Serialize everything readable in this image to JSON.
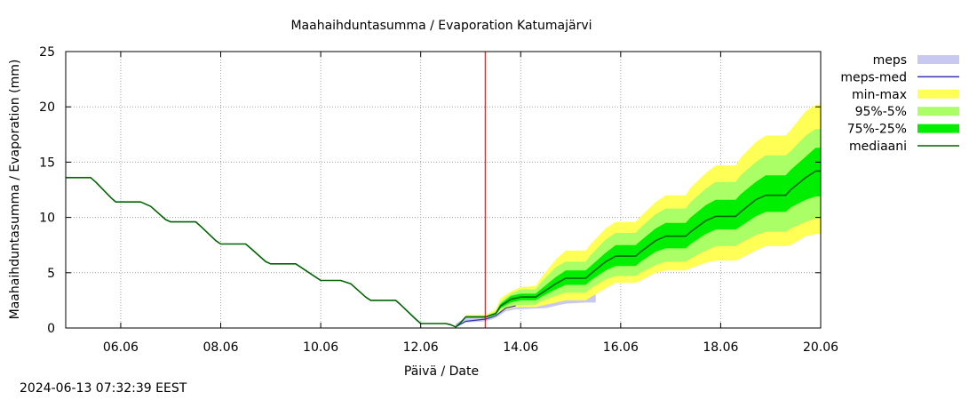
{
  "timestamp": "2024-06-13 07:32:39 EEST",
  "chart_data": {
    "type": "area",
    "title": "Maahaihduntasumma / Evaporation   Katumajärvi",
    "xlabel": "Päivä / Date",
    "ylabel": "Maahaihduntasumma / Evaporation (mm)",
    "xlim": [
      4.9,
      20.0
    ],
    "ylim": [
      0,
      25
    ],
    "x_unit": "day of June 2024",
    "y_ticks": [
      0,
      5,
      10,
      15,
      20,
      25
    ],
    "y_tick_labels": [
      "0",
      "5",
      "10",
      "15",
      "20",
      "25"
    ],
    "x_ticks": [
      6,
      8,
      10,
      12,
      14,
      16,
      18,
      20
    ],
    "x_tick_labels": [
      "06.06",
      "08.06",
      "10.06",
      "12.06",
      "14.06",
      "16.06",
      "18.06",
      "20.06"
    ],
    "grid": true,
    "legend_position": "right",
    "forecast_start_x": 13.29,
    "forecast_line_color": "#cc0000",
    "legend": [
      {
        "label": "meps",
        "kind": "band",
        "color": "#c8c8f0"
      },
      {
        "label": "meps-med",
        "kind": "line",
        "color": "#3232b4"
      },
      {
        "label": "min-max",
        "kind": "band",
        "color": "#ffff55"
      },
      {
        "label": "95%-5%",
        "kind": "band",
        "color": "#aaff66"
      },
      {
        "label": "75%-25%",
        "kind": "band",
        "color": "#00ee00"
      },
      {
        "label": "mediaani",
        "kind": "line",
        "color": "#006400"
      }
    ],
    "series": [
      {
        "name": "mediaani",
        "color": "#006400",
        "x": [
          4.9,
          5.4,
          5.5,
          5.8,
          5.9,
          6.4,
          6.6,
          6.9,
          7.0,
          7.5,
          7.6,
          7.9,
          8.0,
          8.5,
          8.6,
          8.9,
          9.0,
          9.5,
          9.6,
          9.9,
          10.0,
          10.4,
          10.6,
          10.9,
          11.0,
          11.5,
          11.6,
          11.9,
          12.0,
          12.5,
          12.6,
          12.7,
          12.8,
          12.9,
          13.3,
          13.5,
          13.6,
          13.8,
          14.0,
          14.3,
          14.4,
          14.7,
          14.9,
          15.3,
          15.4,
          15.7,
          15.9,
          16.3,
          16.4,
          16.7,
          16.9,
          17.3,
          17.4,
          17.7,
          17.9,
          18.3,
          18.4,
          18.7,
          18.9,
          19.3,
          19.4,
          19.7,
          19.9,
          20.0
        ],
        "values": [
          13.6,
          13.6,
          13.2,
          11.8,
          11.4,
          11.4,
          11.0,
          9.8,
          9.6,
          9.6,
          9.2,
          7.9,
          7.6,
          7.6,
          7.2,
          6.0,
          5.8,
          5.8,
          5.5,
          4.6,
          4.3,
          4.3,
          4.0,
          2.8,
          2.5,
          2.5,
          2.1,
          0.8,
          0.4,
          0.4,
          0.3,
          0.1,
          0.5,
          1.0,
          1.0,
          1.3,
          2.0,
          2.6,
          2.8,
          2.8,
          3.1,
          4.0,
          4.5,
          4.5,
          4.9,
          6.0,
          6.5,
          6.5,
          6.9,
          7.9,
          8.3,
          8.3,
          8.7,
          9.7,
          10.1,
          10.1,
          10.5,
          11.6,
          12.0,
          12.0,
          12.5,
          13.6,
          14.2,
          14.2
        ]
      },
      {
        "name": "meps",
        "color": "#c8c8f0",
        "x": [
          12.7,
          12.9,
          13.3,
          13.5,
          13.7,
          13.9,
          14.0,
          14.5,
          14.9,
          15.3,
          15.5
        ],
        "lower": [
          0.1,
          0.5,
          0.6,
          0.9,
          1.5,
          1.7,
          1.7,
          1.8,
          2.2,
          2.3,
          2.3
        ],
        "upper": [
          0.4,
          0.9,
          1.0,
          1.3,
          2.0,
          2.2,
          2.3,
          2.5,
          3.0,
          3.2,
          3.2
        ]
      },
      {
        "name": "meps-med",
        "color": "#3232b4",
        "x": [
          12.7,
          12.9,
          13.3,
          13.5,
          13.7,
          13.9
        ],
        "values": [
          0.1,
          0.6,
          0.8,
          1.1,
          1.8,
          2.0
        ]
      },
      {
        "name": "min-max",
        "color": "#ffff55",
        "x": [
          12.9,
          13.3,
          13.5,
          13.6,
          13.8,
          14.0,
          14.3,
          14.4,
          14.7,
          14.9,
          15.3,
          15.4,
          15.7,
          15.9,
          16.3,
          16.4,
          16.7,
          16.9,
          17.3,
          17.4,
          17.7,
          17.9,
          18.3,
          18.4,
          18.7,
          18.9,
          19.3,
          19.4,
          19.7,
          19.9,
          20.0
        ],
        "lower": [
          0.9,
          0.9,
          1.0,
          1.5,
          1.8,
          1.9,
          1.9,
          2.0,
          2.3,
          2.5,
          2.5,
          2.8,
          3.6,
          4.1,
          4.1,
          4.3,
          5.0,
          5.2,
          5.2,
          5.4,
          5.9,
          6.1,
          6.1,
          6.3,
          7.0,
          7.4,
          7.4,
          7.5,
          8.3,
          8.5,
          8.5
        ],
        "upper": [
          1.2,
          1.2,
          1.7,
          2.7,
          3.3,
          3.7,
          3.8,
          4.5,
          6.2,
          7.0,
          7.0,
          7.6,
          9.0,
          9.6,
          9.6,
          10.1,
          11.4,
          12.0,
          12.0,
          12.7,
          14.0,
          14.7,
          14.7,
          15.4,
          16.8,
          17.4,
          17.4,
          17.9,
          19.6,
          20.2,
          20.2
        ]
      },
      {
        "name": "95%-5%",
        "color": "#aaff66",
        "x": [
          12.9,
          13.3,
          13.5,
          13.6,
          13.8,
          14.0,
          14.3,
          14.4,
          14.7,
          14.9,
          15.3,
          15.4,
          15.7,
          15.9,
          16.3,
          16.4,
          16.7,
          16.9,
          17.3,
          17.4,
          17.7,
          17.9,
          18.3,
          18.4,
          18.7,
          18.9,
          19.3,
          19.4,
          19.7,
          19.9,
          20.0
        ],
        "lower": [
          0.9,
          0.9,
          1.1,
          1.7,
          2.0,
          2.1,
          2.1,
          2.4,
          2.9,
          3.2,
          3.2,
          3.6,
          4.4,
          4.7,
          4.7,
          5.0,
          5.7,
          6.0,
          6.0,
          6.3,
          7.0,
          7.4,
          7.4,
          7.7,
          8.4,
          8.7,
          8.7,
          9.0,
          9.6,
          9.9,
          9.9
        ],
        "upper": [
          1.1,
          1.1,
          1.5,
          2.4,
          3.1,
          3.5,
          3.5,
          4.1,
          5.5,
          6.0,
          6.0,
          6.6,
          8.0,
          8.6,
          8.6,
          9.1,
          10.3,
          10.8,
          10.8,
          11.4,
          12.6,
          13.2,
          13.2,
          13.8,
          15.0,
          15.6,
          15.6,
          16.0,
          17.4,
          18.0,
          18.0
        ]
      },
      {
        "name": "75%-25%",
        "color": "#00ee00",
        "x": [
          12.9,
          13.3,
          13.5,
          13.6,
          13.8,
          14.0,
          14.3,
          14.4,
          14.7,
          14.9,
          15.3,
          15.4,
          15.7,
          15.9,
          16.3,
          16.4,
          16.7,
          16.9,
          17.3,
          17.4,
          17.7,
          17.9,
          18.3,
          18.4,
          18.7,
          18.9,
          19.3,
          19.4,
          19.7,
          19.9,
          20.0
        ],
        "lower": [
          0.95,
          0.95,
          1.2,
          1.8,
          2.3,
          2.5,
          2.5,
          2.8,
          3.5,
          3.9,
          3.9,
          4.3,
          5.2,
          5.6,
          5.6,
          6.0,
          6.9,
          7.2,
          7.2,
          7.6,
          8.5,
          8.9,
          8.9,
          9.2,
          10.1,
          10.5,
          10.5,
          10.9,
          11.6,
          11.9,
          11.9
        ],
        "upper": [
          1.05,
          1.05,
          1.4,
          2.2,
          2.9,
          3.1,
          3.1,
          3.5,
          4.6,
          5.2,
          5.2,
          5.6,
          6.8,
          7.5,
          7.5,
          7.9,
          9.0,
          9.5,
          9.5,
          10.0,
          11.1,
          11.6,
          11.6,
          12.1,
          13.2,
          13.8,
          13.8,
          14.3,
          15.5,
          16.3,
          16.3
        ]
      }
    ]
  }
}
